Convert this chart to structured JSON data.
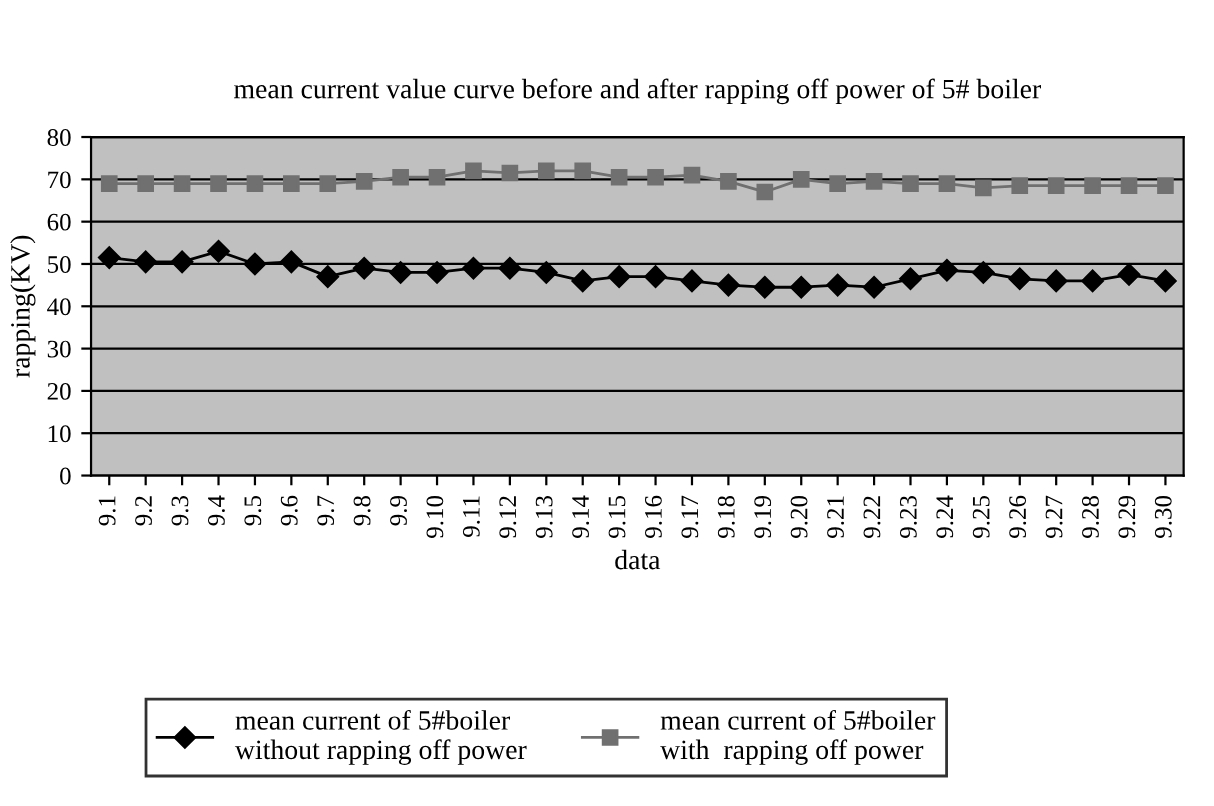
{
  "chart_data": {
    "type": "line",
    "title": "mean current value curve before and after rapping off power of 5# boiler",
    "xlabel": "data",
    "ylabel": "rapping(KV)",
    "categories": [
      "9.1",
      "9.2",
      "9.3",
      "9.4",
      "9.5",
      "9.6",
      "9.7",
      "9.8",
      "9.9",
      "9.10",
      "9.11",
      "9.12",
      "9.13",
      "9.14",
      "9.15",
      "9.16",
      "9.17",
      "9.18",
      "9.19",
      "9.20",
      "9.21",
      "9.22",
      "9.23",
      "9.24",
      "9.25",
      "9.26",
      "9.27",
      "9.28",
      "9.29",
      "9.30"
    ],
    "series": [
      {
        "name": "mean current of 5#boiler\nwithout rapping off power",
        "color": "#000000",
        "marker": "diamond",
        "values": [
          51.5,
          50.5,
          50.5,
          53,
          50,
          50.5,
          47,
          49,
          48,
          48,
          49,
          49,
          48,
          46,
          47,
          47,
          46,
          45,
          44.5,
          44.5,
          45,
          44.5,
          46.5,
          48.5,
          48,
          46.5,
          46,
          46,
          47.5,
          46
        ]
      },
      {
        "name": "mean current of 5#boiler\nwith  rapping off power",
        "color": "#707070",
        "marker": "square",
        "values": [
          69,
          69,
          69,
          69,
          69,
          69,
          69,
          69.5,
          70.5,
          70.5,
          72,
          71.5,
          72,
          72,
          70.5,
          70.5,
          71,
          69.5,
          67,
          70,
          69,
          69.5,
          69,
          69,
          68,
          68.5,
          68.5,
          68.5,
          68.5,
          68.5
        ]
      }
    ],
    "ylim": [
      0,
      80
    ],
    "yticks": [
      0,
      10,
      20,
      30,
      40,
      50,
      60,
      70,
      80
    ],
    "grid": "y",
    "legend": "bottom",
    "line_style": "solid"
  }
}
